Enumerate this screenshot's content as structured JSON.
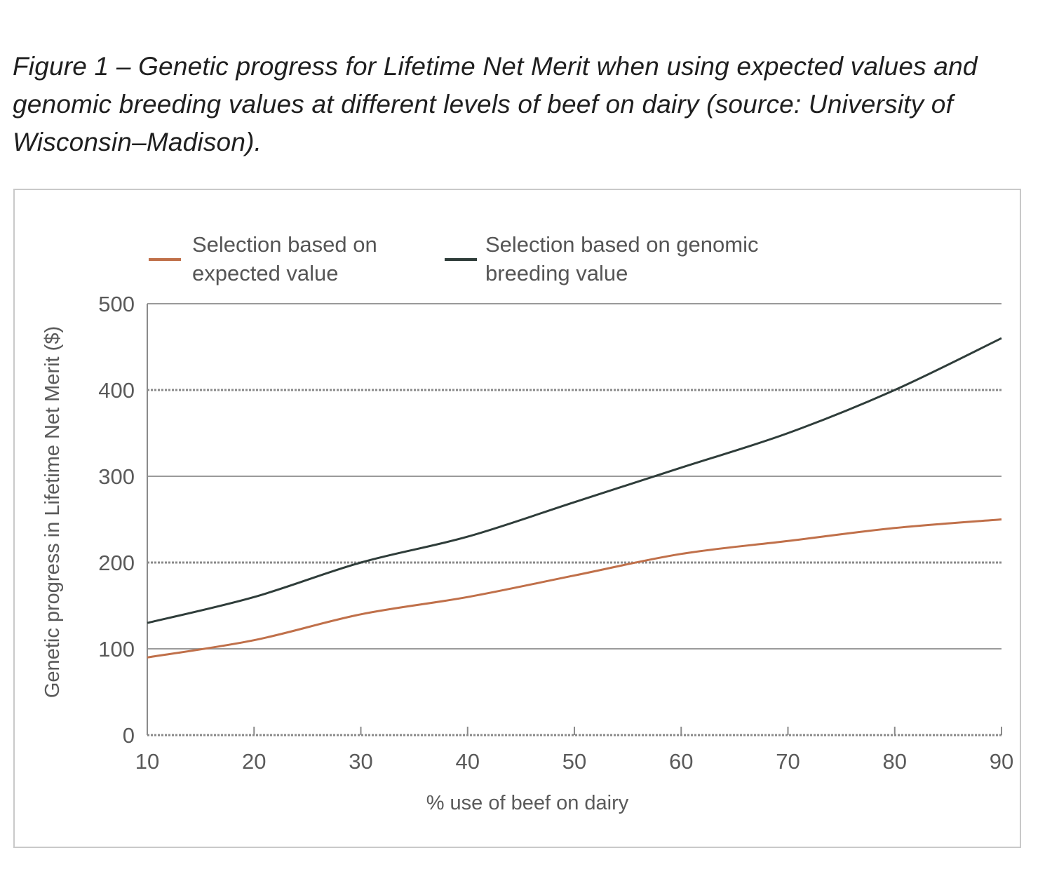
{
  "caption": "Figure 1 – Genetic progress for Lifetime Net Merit when using expected values and genomic breeding values at different levels of beef on dairy (source: University of Wisconsin–Madison).",
  "chart_data": {
    "type": "line",
    "title": "",
    "xlabel": "% use of beef on dairy",
    "ylabel": "Genetic progress in Lifetime Net Merit ($)",
    "x": [
      10,
      20,
      30,
      40,
      50,
      60,
      70,
      80,
      90
    ],
    "xlim": [
      10,
      90
    ],
    "ylim": [
      0,
      500
    ],
    "xticks": [
      "10",
      "20",
      "30",
      "40",
      "50",
      "60",
      "70",
      "80",
      "90"
    ],
    "yticks": [
      "0",
      "100",
      "200",
      "300",
      "400",
      "500"
    ],
    "grid": "horizontal",
    "legend_position": "top",
    "series": [
      {
        "name_lines": [
          "Selection based on",
          "expected value"
        ],
        "color": "#c0704a",
        "values": [
          90,
          110,
          140,
          160,
          185,
          210,
          225,
          240,
          250
        ]
      },
      {
        "name_lines": [
          "Selection based on genomic",
          "breeding value"
        ],
        "color": "#2f3d3a",
        "values": [
          130,
          160,
          200,
          230,
          270,
          310,
          350,
          400,
          460
        ]
      }
    ]
  }
}
